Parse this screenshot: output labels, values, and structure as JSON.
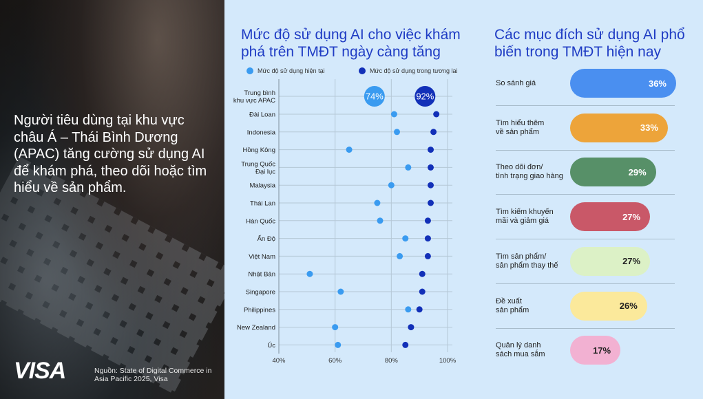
{
  "left": {
    "headline": "Người tiêu dùng tại khu vực châu Á – Thái Bình Dương (APAC) tăng cường sử dụng AI để khám phá, theo dõi hoặc tìm hiểu về sản phẩm.",
    "logo": "VISA",
    "source": "Nguồn: State of Digital Commerce in Asia Pacific 2025, Visa"
  },
  "chart_data": [
    {
      "type": "dumbbell",
      "title": "Mức độ sử dụng AI cho việc khám phá trên TMĐT ngày càng tăng",
      "legend": [
        {
          "name": "Mức độ sử dụng hiện tại",
          "color": "#3a9bf0"
        },
        {
          "name": "Mức độ sử dụng trong tương lai",
          "color": "#1230b8"
        }
      ],
      "categories": [
        "Trung bình khu vực APAC",
        "Đài Loan",
        "Indonesia",
        "Hồng Kông",
        "Trung Quốc Đại lục",
        "Malaysia",
        "Thái Lan",
        "Hàn Quốc",
        "Ấn Độ",
        "Việt Nam",
        "Nhật Bản",
        "Singapore",
        "Philippines",
        "New Zealand",
        "Úc"
      ],
      "category_lines": [
        [
          "Trung bình",
          "khu vực APAC"
        ],
        [
          "Đài Loan"
        ],
        [
          "Indonesia"
        ],
        [
          "Hồng Kông"
        ],
        [
          "Trung Quốc",
          "Đại lục"
        ],
        [
          "Malaysia"
        ],
        [
          "Thái Lan"
        ],
        [
          "Hàn Quốc"
        ],
        [
          "Ấn Độ"
        ],
        [
          "Việt Nam"
        ],
        [
          "Nhật Bản"
        ],
        [
          "Singapore"
        ],
        [
          "Philippines"
        ],
        [
          "New Zealand"
        ],
        [
          "Úc"
        ]
      ],
      "series": [
        {
          "name": "Mức độ sử dụng hiện tại",
          "values": [
            74,
            81,
            82,
            65,
            86,
            80,
            75,
            76,
            85,
            83,
            51,
            62,
            86,
            60,
            61
          ]
        },
        {
          "name": "Mức độ sử dụng trong tương lai",
          "values": [
            92,
            96,
            95,
            94,
            94,
            94,
            94,
            93,
            93,
            93,
            91,
            91,
            90,
            87,
            85
          ]
        }
      ],
      "highlight_labels": [
        "74%",
        "92%"
      ],
      "xlim": [
        40,
        100
      ],
      "xticks": [
        "40%",
        "60%",
        "80%",
        "100%"
      ],
      "grid": true,
      "legend_position": "top"
    },
    {
      "type": "bar",
      "title": "Các mục đích sử dụng AI phổ biến trong TMĐT hiện nay",
      "categories": [
        "So sánh giá",
        "Tìm hiểu thêm về sản phẩm",
        "Theo dõi đơn/ tình trạng giao hàng",
        "Tìm kiếm khuyến mãi và giảm giá",
        "Tìm sản phẩm/ sản phẩm thay thế",
        "Đề xuất sản phẩm",
        "Quản lý danh sách mua sắm"
      ],
      "category_lines": [
        [
          "So sánh giá"
        ],
        [
          "Tìm hiểu thêm",
          "về sản phẩm"
        ],
        [
          "Theo dõi đơn/",
          "tình trạng giao hàng"
        ],
        [
          "Tìm kiếm khuyến",
          "mãi và giảm giá"
        ],
        [
          "Tìm sản phẩm/",
          "sản phẩm thay thế"
        ],
        [
          "Đề xuất",
          "sản phẩm"
        ],
        [
          "Quản lý danh",
          "sách mua sắm"
        ]
      ],
      "values": [
        36,
        33,
        29,
        27,
        27,
        26,
        17
      ],
      "labels": [
        "36%",
        "33%",
        "29%",
        "27%",
        "27%",
        "26%",
        "17%"
      ],
      "colors": [
        "#4a8ff0",
        "#eda43a",
        "#579068",
        "#c95868",
        "#dcf1c6",
        "#fbe99b",
        "#f2b1d2"
      ],
      "label_colors": [
        "#ffffff",
        "#ffffff",
        "#ffffff",
        "#ffffff",
        "#222222",
        "#222222",
        "#222222"
      ]
    }
  ]
}
